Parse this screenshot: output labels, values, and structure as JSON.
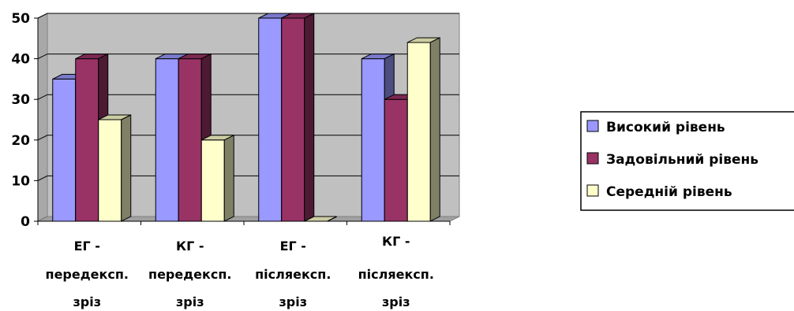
{
  "chart_data": {
    "type": "bar",
    "title": "",
    "xlabel": "",
    "ylabel": "",
    "ylim": [
      0,
      50
    ],
    "yticks": [
      "0",
      "10",
      "20",
      "30",
      "40",
      "50"
    ],
    "categories": [
      [
        "ЕГ -",
        "передексп.",
        "зріз"
      ],
      [
        "КГ -",
        "передексп.",
        "зріз"
      ],
      [
        "ЕГ -",
        "післяексп.",
        "зріз"
      ],
      [
        "КГ -",
        "післяексп.",
        "зріз"
      ]
    ],
    "series": [
      {
        "name": "Високий рівень",
        "color": "#9999ff",
        "values": [
          35,
          40,
          50,
          40
        ]
      },
      {
        "name": "Задовільний рівень",
        "color": "#993366",
        "values": [
          40,
          40,
          50,
          30
        ]
      },
      {
        "name": "Середній рівень",
        "color": "#ffffcc",
        "values": [
          25,
          20,
          0,
          44
        ]
      }
    ],
    "grid": true,
    "three_d": true,
    "background_color": "#c0c0c0",
    "legend_position": "right"
  }
}
